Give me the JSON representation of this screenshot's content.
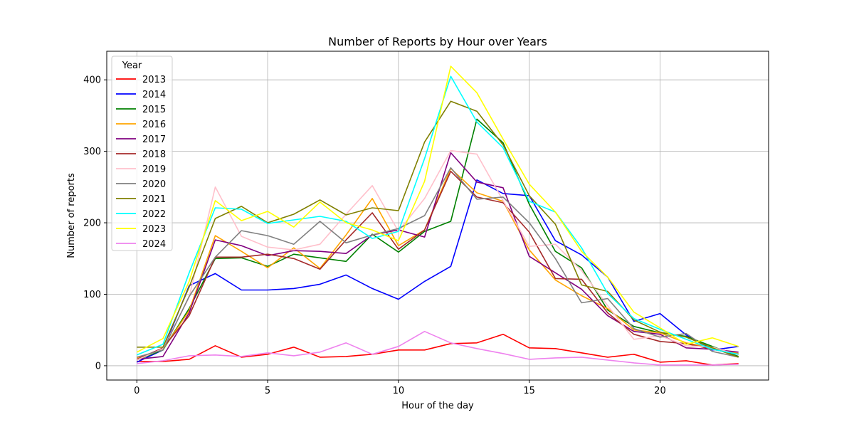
{
  "chart_data": {
    "type": "line",
    "title": "Number of Reports by Hour over Years",
    "xlabel": "Hour of the day",
    "ylabel": "Number of reports",
    "xlim": [
      -1.15,
      24.15
    ],
    "ylim": [
      -20,
      440
    ],
    "xticks": [
      0,
      5,
      10,
      15,
      20
    ],
    "yticks": [
      0,
      100,
      200,
      300,
      400
    ],
    "grid": true,
    "legend": {
      "title": "Year",
      "placement": "upper-left"
    },
    "x": [
      0,
      1,
      2,
      3,
      4,
      5,
      6,
      7,
      8,
      9,
      10,
      11,
      12,
      13,
      14,
      15,
      16,
      17,
      18,
      19,
      20,
      21,
      22,
      23
    ],
    "series": [
      {
        "name": "2013",
        "color": "#ff0000",
        "values": [
          6,
          6,
          9,
          28,
          12,
          16,
          26,
          12,
          13,
          16,
          22,
          22,
          31,
          32,
          44,
          25,
          24,
          18,
          12,
          16,
          5,
          7,
          1,
          3
        ]
      },
      {
        "name": "2014",
        "color": "#0000ff",
        "values": [
          5,
          22,
          112,
          129,
          106,
          106,
          108,
          114,
          127,
          108,
          93,
          118,
          139,
          260,
          241,
          238,
          175,
          155,
          124,
          62,
          73,
          43,
          22,
          27
        ]
      },
      {
        "name": "2015",
        "color": "#008000",
        "values": [
          8,
          22,
          80,
          150,
          151,
          139,
          156,
          151,
          146,
          184,
          159,
          188,
          202,
          345,
          312,
          226,
          160,
          137,
          78,
          55,
          46,
          41,
          27,
          13
        ]
      },
      {
        "name": "2016",
        "color": "#ffa500",
        "values": [
          11,
          23,
          77,
          182,
          160,
          137,
          165,
          136,
          183,
          234,
          168,
          190,
          276,
          242,
          230,
          162,
          120,
          98,
          80,
          50,
          46,
          32,
          25,
          17
        ]
      },
      {
        "name": "2017",
        "color": "#800080",
        "values": [
          9,
          13,
          74,
          176,
          168,
          154,
          161,
          160,
          157,
          183,
          190,
          180,
          298,
          257,
          249,
          153,
          130,
          107,
          70,
          48,
          44,
          25,
          23,
          19
        ]
      },
      {
        "name": "2018",
        "color": "#a52a2a",
        "values": [
          9,
          25,
          70,
          152,
          152,
          156,
          150,
          135,
          176,
          214,
          163,
          190,
          272,
          236,
          228,
          187,
          122,
          121,
          74,
          44,
          34,
          31,
          23,
          16
        ]
      },
      {
        "name": "2019",
        "color": "#ffc0cb",
        "values": [
          8,
          24,
          96,
          250,
          181,
          166,
          162,
          170,
          212,
          252,
          188,
          234,
          301,
          296,
          231,
          167,
          170,
          133,
          84,
          37,
          42,
          28,
          26,
          15
        ]
      },
      {
        "name": "2020",
        "color": "#808080",
        "values": [
          12,
          22,
          97,
          152,
          189,
          182,
          170,
          202,
          172,
          183,
          192,
          210,
          277,
          233,
          236,
          200,
          150,
          88,
          94,
          52,
          40,
          45,
          20,
          12
        ]
      },
      {
        "name": "2021",
        "color": "#808000",
        "values": [
          26,
          26,
          110,
          206,
          223,
          200,
          212,
          232,
          211,
          221,
          217,
          313,
          370,
          356,
          309,
          238,
          198,
          113,
          104,
          64,
          47,
          40,
          25,
          12
        ]
      },
      {
        "name": "2022",
        "color": "#00ffff",
        "values": [
          15,
          30,
          130,
          221,
          219,
          199,
          204,
          209,
          202,
          178,
          188,
          290,
          405,
          341,
          305,
          230,
          215,
          165,
          101,
          66,
          51,
          37,
          23,
          16
        ]
      },
      {
        "name": "2023",
        "color": "#ffff00",
        "values": [
          19,
          38,
          118,
          231,
          203,
          216,
          194,
          229,
          200,
          190,
          175,
          258,
          419,
          382,
          317,
          254,
          215,
          160,
          124,
          75,
          53,
          30,
          39,
          27
        ]
      },
      {
        "name": "2024",
        "color": "#ee82ee",
        "values": [
          3,
          7,
          14,
          15,
          13,
          18,
          14,
          19,
          32,
          16,
          27,
          48,
          32,
          24,
          17,
          9,
          11,
          12,
          8,
          4,
          1,
          1,
          1,
          2
        ]
      }
    ]
  }
}
